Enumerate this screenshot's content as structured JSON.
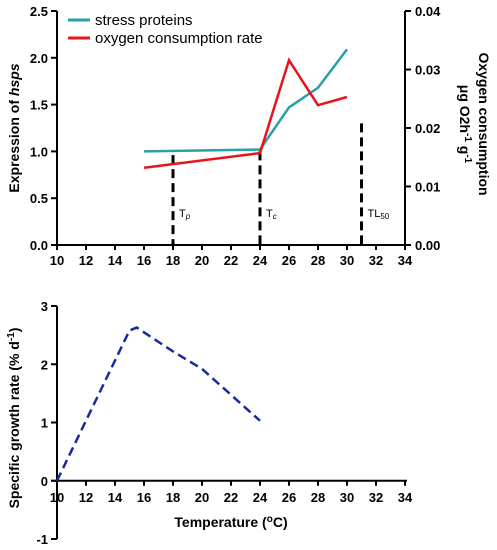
{
  "chart_data": [
    {
      "type": "line",
      "title": "",
      "xlabel": "",
      "ylabel": "Expression of hsps",
      "ylabel_parts": [
        "Expression of ",
        "hsps"
      ],
      "y2label_line1": "Oxygen consumption",
      "y2label_line2_parts": [
        "μg O2h",
        "-1",
        " g",
        "-1"
      ],
      "xlim": [
        10,
        34
      ],
      "ylim": [
        0,
        2.5
      ],
      "y2lim": [
        0,
        0.04
      ],
      "x_ticks": [
        10,
        12,
        14,
        16,
        18,
        20,
        22,
        24,
        26,
        28,
        30,
        32,
        34
      ],
      "y_ticks": [
        "0.0",
        "0.5",
        "1.0",
        "1.5",
        "2.0",
        "2.5"
      ],
      "y2_ticks": [
        "0.00",
        "0.01",
        "0.02",
        "0.03",
        "0.04"
      ],
      "legend_position": "top-left",
      "series": [
        {
          "name": "stress proteins",
          "axis": "left",
          "color": "#2a9fa6",
          "x": [
            16,
            24,
            26,
            28,
            30
          ],
          "y": [
            1.0,
            1.02,
            1.47,
            1.68,
            2.09
          ]
        },
        {
          "name": "oxygen consumption rate",
          "axis": "right",
          "color": "#e8141c",
          "x": [
            16,
            24,
            26,
            28,
            30
          ],
          "y": [
            0.0132,
            0.0157,
            0.0316,
            0.0239,
            0.0253
          ]
        }
      ],
      "threshold_markers": [
        {
          "x": 18,
          "top": 0.96,
          "label_main": "T",
          "label_sub": "p"
        },
        {
          "x": 24,
          "top": 1.0,
          "label_main": "T",
          "label_sub": "c"
        },
        {
          "x": 31,
          "top": 1.3,
          "label_main": "TL",
          "label_sub": "50"
        }
      ]
    },
    {
      "type": "line",
      "title": "",
      "xlabel": "Temperature (°C)",
      "xlabel_parts": [
        "Temperature (",
        "o",
        "C)"
      ],
      "ylabel_parts": [
        "Specific growth rate (% d",
        "-1",
        ")"
      ],
      "xlim": [
        10,
        34
      ],
      "ylim": [
        -1,
        3
      ],
      "x_ticks": [
        10,
        12,
        14,
        16,
        18,
        20,
        22,
        24,
        26,
        28,
        30,
        32,
        34
      ],
      "y_ticks": [
        "-1",
        "0",
        "1",
        "2",
        "3"
      ],
      "series": [
        {
          "color": "#1a2a9c",
          "style": "dashed",
          "x": [
            10,
            15,
            15.5,
            18,
            20,
            24
          ],
          "y": [
            0,
            2.58,
            2.63,
            2.22,
            1.92,
            1.03
          ]
        }
      ]
    }
  ]
}
